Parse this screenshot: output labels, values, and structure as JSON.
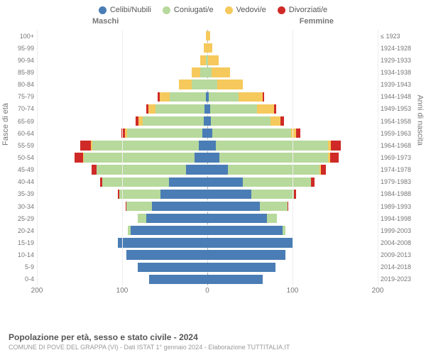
{
  "legend": [
    {
      "label": "Celibi/Nubili",
      "color": "#4a7db5"
    },
    {
      "label": "Coniugati/e",
      "color": "#b7d99c"
    },
    {
      "label": "Vedovi/e",
      "color": "#f6c95c"
    },
    {
      "label": "Divorziati/e",
      "color": "#cf2a27"
    }
  ],
  "gender_labels": {
    "m": "Maschi",
    "f": "Femmine"
  },
  "y_left_title": "Fasce di età",
  "y_right_title": "Anni di nascita",
  "x_max": 200,
  "x_ticks": [
    200,
    100,
    0,
    100,
    200
  ],
  "age_bands": [
    "100+",
    "95-99",
    "90-94",
    "85-89",
    "80-84",
    "75-79",
    "70-74",
    "65-69",
    "60-64",
    "55-59",
    "50-54",
    "45-49",
    "40-44",
    "35-39",
    "30-34",
    "25-29",
    "20-24",
    "15-19",
    "10-14",
    "5-9",
    "0-4"
  ],
  "birth_years": [
    "≤ 1923",
    "1924-1928",
    "1929-1933",
    "1934-1938",
    "1939-1943",
    "1944-1948",
    "1949-1953",
    "1954-1958",
    "1959-1963",
    "1964-1968",
    "1969-1973",
    "1974-1978",
    "1979-1983",
    "1984-1988",
    "1989-1993",
    "1994-1998",
    "1999-2003",
    "2004-2008",
    "2009-2013",
    "2014-2018",
    "2019-2023"
  ],
  "data": {
    "m": [
      [
        0,
        0,
        2,
        0
      ],
      [
        0,
        0,
        4,
        0
      ],
      [
        0,
        2,
        6,
        0
      ],
      [
        0,
        8,
        10,
        0
      ],
      [
        0,
        18,
        15,
        0
      ],
      [
        2,
        42,
        12,
        2
      ],
      [
        3,
        58,
        8,
        3
      ],
      [
        4,
        72,
        5,
        3
      ],
      [
        6,
        88,
        3,
        4
      ],
      [
        10,
        125,
        2,
        12
      ],
      [
        15,
        130,
        1,
        10
      ],
      [
        25,
        105,
        0,
        6
      ],
      [
        45,
        78,
        0,
        3
      ],
      [
        55,
        48,
        0,
        2
      ],
      [
        65,
        30,
        0,
        1
      ],
      [
        72,
        10,
        0,
        0
      ],
      [
        90,
        3,
        0,
        0
      ],
      [
        105,
        0,
        0,
        0
      ],
      [
        95,
        0,
        0,
        0
      ],
      [
        82,
        0,
        0,
        0
      ],
      [
        68,
        0,
        0,
        0
      ]
    ],
    "f": [
      [
        0,
        0,
        3,
        0
      ],
      [
        0,
        0,
        6,
        0
      ],
      [
        0,
        1,
        12,
        0
      ],
      [
        0,
        5,
        22,
        0
      ],
      [
        0,
        12,
        30,
        0
      ],
      [
        2,
        35,
        28,
        2
      ],
      [
        3,
        55,
        20,
        3
      ],
      [
        4,
        70,
        12,
        4
      ],
      [
        6,
        92,
        6,
        5
      ],
      [
        10,
        132,
        3,
        12
      ],
      [
        14,
        128,
        2,
        10
      ],
      [
        24,
        108,
        1,
        6
      ],
      [
        42,
        80,
        0,
        4
      ],
      [
        52,
        50,
        0,
        2
      ],
      [
        62,
        32,
        0,
        1
      ],
      [
        70,
        12,
        0,
        0
      ],
      [
        88,
        4,
        0,
        0
      ],
      [
        100,
        0,
        0,
        0
      ],
      [
        92,
        0,
        0,
        0
      ],
      [
        80,
        0,
        0,
        0
      ],
      [
        65,
        0,
        0,
        0
      ]
    ]
  },
  "footer": {
    "title": "Popolazione per età, sesso e stato civile - 2024",
    "sub": "COMUNE DI POVE DEL GRAPPA (VI) - Dati ISTAT 1° gennaio 2024 - Elaborazione TUTTITALIA.IT"
  }
}
